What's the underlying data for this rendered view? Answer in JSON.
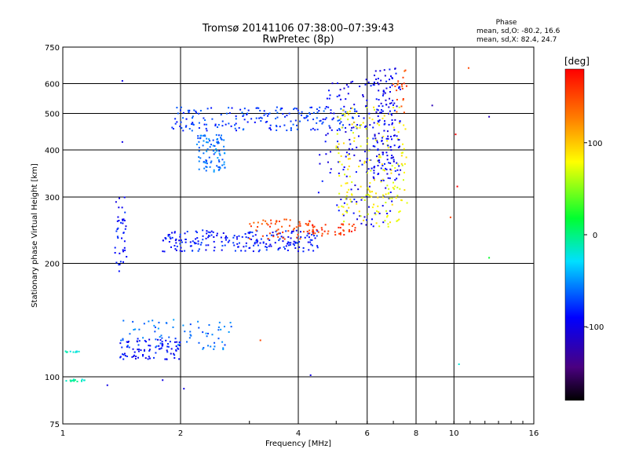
{
  "chart_data": {
    "type": "scatter",
    "title": "Tromsø 20141106 07:38:00–07:39:43",
    "subtitle": "RwPretec (8p)",
    "xlabel": "Frequency [MHz]",
    "ylabel": "Stationary phase Virtual Height [km]",
    "x_scale": "log",
    "y_scale": "log",
    "xlim": [
      1,
      16
    ],
    "ylim": [
      75,
      750
    ],
    "grid": true,
    "x_ticks": [
      1,
      2,
      4,
      6,
      8,
      10,
      16
    ],
    "y_ticks": [
      75,
      100,
      200,
      300,
      400,
      500,
      600,
      750
    ],
    "phase_box": {
      "heading": "Phase",
      "line_o": "mean, sd,O: -80.2, 16.6",
      "line_x": "mean, sd,X:  82.4, 24.7"
    },
    "colorbar": {
      "label": "[deg]",
      "range": [
        -180,
        180
      ],
      "ticks": [
        100,
        0,
        -100
      ]
    },
    "traces": [
      {
        "x_range": [
          1.0,
          1.1
        ],
        "y_range": [
          116,
          117
        ],
        "phase": -20,
        "count": 10
      },
      {
        "x_range": [
          1.02,
          1.14
        ],
        "y_range": [
          97,
          99
        ],
        "phase": -10,
        "count": 14
      },
      {
        "x_range": [
          1.36,
          1.46
        ],
        "y_range": [
          190,
          300
        ],
        "phase": -90,
        "count": 40
      },
      {
        "x_range": [
          1.4,
          2.0
        ],
        "y_range": [
          111,
          127
        ],
        "phase": -90,
        "count": 90
      },
      {
        "x_range": [
          1.4,
          2.7
        ],
        "y_range": [
          118,
          142
        ],
        "phase": -60,
        "count": 70
      },
      {
        "x_range": [
          1.8,
          4.6
        ],
        "y_range": [
          215,
          245
        ],
        "phase": -85,
        "count": 220
      },
      {
        "x_range": [
          3.0,
          4.6
        ],
        "y_range": [
          232,
          262
        ],
        "phase": 150,
        "count": 60
      },
      {
        "x_range": [
          4.2,
          5.6
        ],
        "y_range": [
          238,
          255
        ],
        "phase": 160,
        "count": 40
      },
      {
        "x_range": [
          1.9,
          5.9
        ],
        "y_range": [
          450,
          520
        ],
        "phase": -75,
        "count": 200
      },
      {
        "x_range": [
          2.2,
          2.6
        ],
        "y_range": [
          350,
          440
        ],
        "phase": -60,
        "count": 90
      },
      {
        "x_range": [
          4.5,
          7.0
        ],
        "y_range": [
          250,
          620
        ],
        "phase": -95,
        "count": 160
      },
      {
        "x_range": [
          5.0,
          7.6
        ],
        "y_range": [
          250,
          520
        ],
        "phase": 80,
        "count": 190
      },
      {
        "x_range": [
          6.2,
          7.3
        ],
        "y_range": [
          330,
          660
        ],
        "phase": -95,
        "count": 130
      },
      {
        "x_range": [
          7.0,
          7.6
        ],
        "y_range": [
          500,
          660
        ],
        "phase": 150,
        "count": 20
      }
    ],
    "scattered_points": [
      {
        "x": 1.42,
        "y": 610,
        "phase": -100
      },
      {
        "x": 1.42,
        "y": 420,
        "phase": -100
      },
      {
        "x": 1.3,
        "y": 95,
        "phase": -100
      },
      {
        "x": 1.8,
        "y": 98,
        "phase": -100
      },
      {
        "x": 2.04,
        "y": 93,
        "phase": -100
      },
      {
        "x": 4.3,
        "y": 101,
        "phase": -100
      },
      {
        "x": 8.8,
        "y": 525,
        "phase": -120
      },
      {
        "x": 10.1,
        "y": 440,
        "phase": 200
      },
      {
        "x": 10.2,
        "y": 320,
        "phase": 200
      },
      {
        "x": 10.3,
        "y": 108,
        "phase": -20
      },
      {
        "x": 10.9,
        "y": 660,
        "phase": 150
      },
      {
        "x": 12.3,
        "y": 490,
        "phase": -120
      },
      {
        "x": 12.3,
        "y": 207,
        "phase": 20
      },
      {
        "x": 9.8,
        "y": 265,
        "phase": 150
      },
      {
        "x": 3.2,
        "y": 125,
        "phase": 150
      }
    ]
  }
}
